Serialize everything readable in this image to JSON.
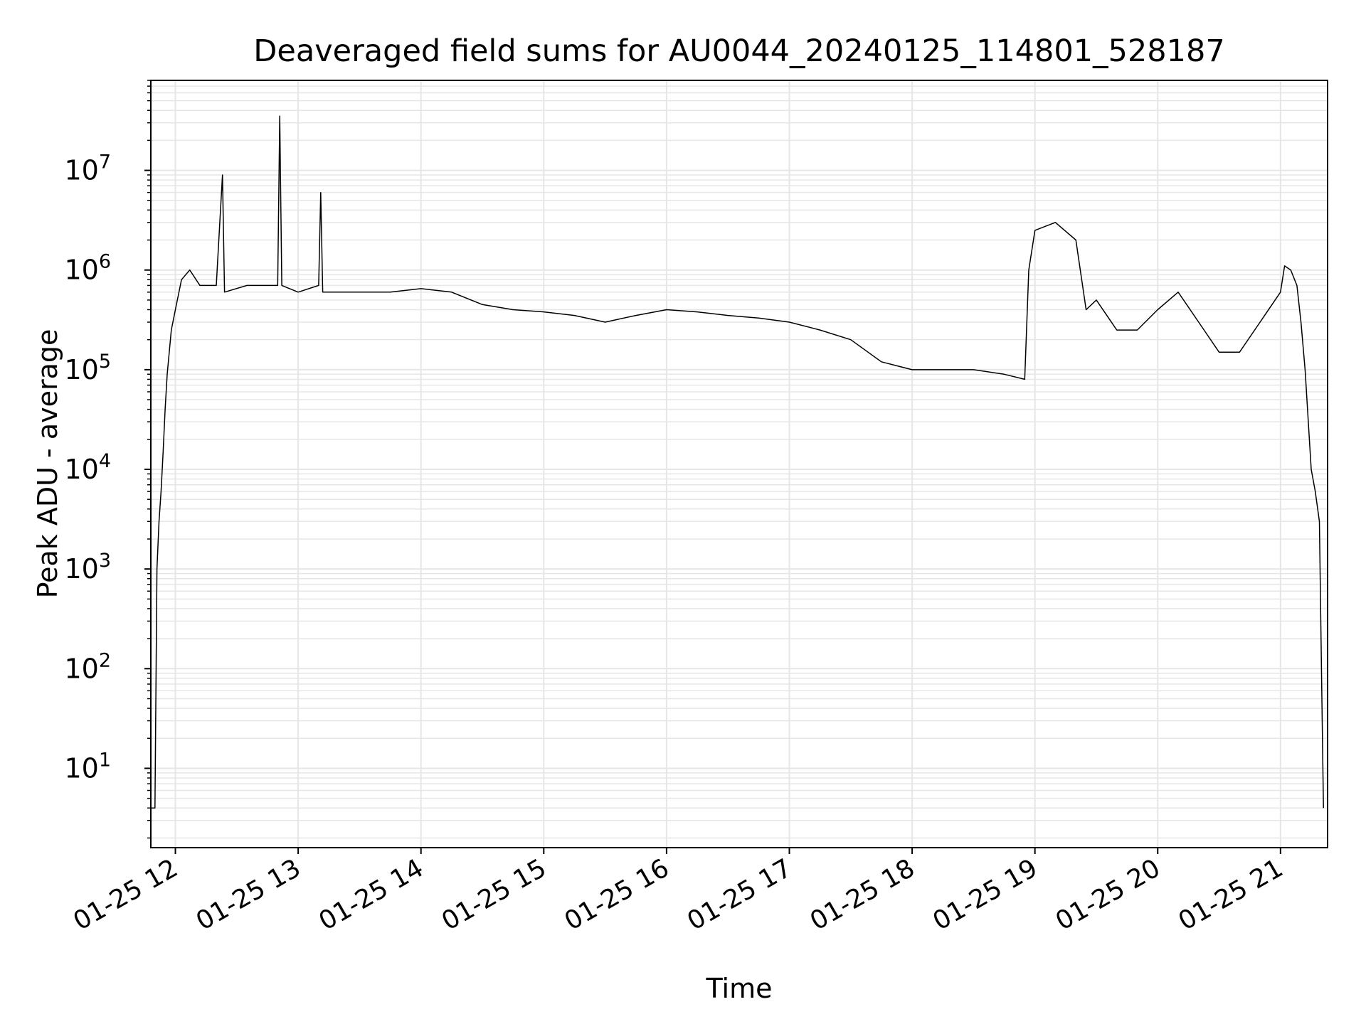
{
  "chart_data": {
    "type": "line",
    "title": "Deaveraged field sums for AU0044_20240125_114801_528187",
    "xlabel": "Time",
    "ylabel": "Peak ADU - average",
    "y_scale": "log",
    "ylim": [
      1.6,
      80000000
    ],
    "xlim": [
      "2024-01-25 11:48",
      "2024-01-25 21:23"
    ],
    "x_ticks": [
      "2024-01-25 12:00",
      "2024-01-25 13:00",
      "2024-01-25 14:00",
      "2024-01-25 15:00",
      "2024-01-25 16:00",
      "2024-01-25 17:00",
      "2024-01-25 18:00",
      "2024-01-25 19:00",
      "2024-01-25 20:00",
      "2024-01-25 21:00"
    ],
    "x_tick_labels": [
      "01-25 12",
      "01-25 13",
      "01-25 14",
      "01-25 15",
      "01-25 16",
      "01-25 17",
      "01-25 18",
      "01-25 19",
      "01-25 20",
      "01-25 21"
    ],
    "y_tick_mantissa": "10",
    "y_ticks": [
      10,
      100,
      1000,
      10000,
      100000,
      1000000,
      10000000
    ],
    "y_tick_exponents": [
      "1",
      "2",
      "3",
      "4",
      "5",
      "6",
      "7"
    ],
    "grid": true,
    "line_color": "#000000",
    "grid_color": "#e6e6e6",
    "series": [
      {
        "points": [
          [
            "2024-01-25 11:48",
            4
          ],
          [
            "2024-01-25 11:49",
            4
          ],
          [
            "2024-01-25 11:50",
            4
          ],
          [
            "2024-01-25 11:51",
            1000
          ],
          [
            "2024-01-25 11:52",
            3000
          ],
          [
            "2024-01-25 11:53",
            6000
          ],
          [
            "2024-01-25 11:54",
            15000
          ],
          [
            "2024-01-25 11:55",
            40000
          ],
          [
            "2024-01-25 11:56",
            90000
          ],
          [
            "2024-01-25 11:57",
            150000
          ],
          [
            "2024-01-25 11:58",
            250000
          ],
          [
            "2024-01-25 12:00",
            400000
          ],
          [
            "2024-01-25 12:03",
            800000
          ],
          [
            "2024-01-25 12:07",
            1000000
          ],
          [
            "2024-01-25 12:12",
            700000
          ],
          [
            "2024-01-25 12:20",
            700000
          ],
          [
            "2024-01-25 12:23",
            9000000
          ],
          [
            "2024-01-25 12:24",
            600000
          ],
          [
            "2024-01-25 12:35",
            700000
          ],
          [
            "2024-01-25 12:45",
            700000
          ],
          [
            "2024-01-25 12:50",
            700000
          ],
          [
            "2024-01-25 12:51",
            35000000
          ],
          [
            "2024-01-25 12:52",
            700000
          ],
          [
            "2024-01-25 13:00",
            600000
          ],
          [
            "2024-01-25 13:10",
            700000
          ],
          [
            "2024-01-25 13:11",
            6000000
          ],
          [
            "2024-01-25 13:12",
            600000
          ],
          [
            "2024-01-25 13:30",
            600000
          ],
          [
            "2024-01-25 13:45",
            600000
          ],
          [
            "2024-01-25 14:00",
            650000
          ],
          [
            "2024-01-25 14:15",
            600000
          ],
          [
            "2024-01-25 14:30",
            450000
          ],
          [
            "2024-01-25 14:45",
            400000
          ],
          [
            "2024-01-25 15:00",
            380000
          ],
          [
            "2024-01-25 15:15",
            350000
          ],
          [
            "2024-01-25 15:30",
            300000
          ],
          [
            "2024-01-25 15:45",
            350000
          ],
          [
            "2024-01-25 16:00",
            400000
          ],
          [
            "2024-01-25 16:15",
            380000
          ],
          [
            "2024-01-25 16:30",
            350000
          ],
          [
            "2024-01-25 16:45",
            330000
          ],
          [
            "2024-01-25 17:00",
            300000
          ],
          [
            "2024-01-25 17:15",
            250000
          ],
          [
            "2024-01-25 17:30",
            200000
          ],
          [
            "2024-01-25 17:45",
            120000
          ],
          [
            "2024-01-25 18:00",
            100000
          ],
          [
            "2024-01-25 18:15",
            100000
          ],
          [
            "2024-01-25 18:30",
            100000
          ],
          [
            "2024-01-25 18:45",
            90000
          ],
          [
            "2024-01-25 18:55",
            80000
          ],
          [
            "2024-01-25 18:57",
            1000000
          ],
          [
            "2024-01-25 19:00",
            2500000
          ],
          [
            "2024-01-25 19:10",
            3000000
          ],
          [
            "2024-01-25 19:20",
            2000000
          ],
          [
            "2024-01-25 19:25",
            400000
          ],
          [
            "2024-01-25 19:30",
            500000
          ],
          [
            "2024-01-25 19:40",
            250000
          ],
          [
            "2024-01-25 19:50",
            250000
          ],
          [
            "2024-01-25 20:00",
            400000
          ],
          [
            "2024-01-25 20:10",
            600000
          ],
          [
            "2024-01-25 20:20",
            300000
          ],
          [
            "2024-01-25 20:30",
            150000
          ],
          [
            "2024-01-25 20:40",
            150000
          ],
          [
            "2024-01-25 20:50",
            300000
          ],
          [
            "2024-01-25 21:00",
            600000
          ],
          [
            "2024-01-25 21:02",
            1100000
          ],
          [
            "2024-01-25 21:05",
            1000000
          ],
          [
            "2024-01-25 21:08",
            700000
          ],
          [
            "2024-01-25 21:10",
            300000
          ],
          [
            "2024-01-25 21:12",
            100000
          ],
          [
            "2024-01-25 21:15",
            10000
          ],
          [
            "2024-01-25 21:17",
            6000
          ],
          [
            "2024-01-25 21:19",
            3000
          ],
          [
            "2024-01-25 21:20",
            100
          ],
          [
            "2024-01-25 21:21",
            4
          ]
        ]
      }
    ]
  }
}
